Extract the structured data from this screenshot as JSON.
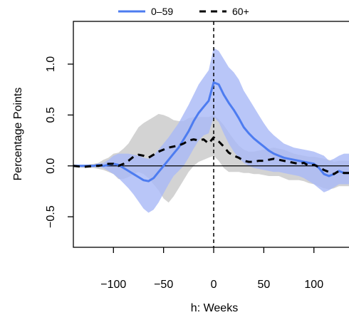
{
  "chart_data": {
    "type": "line",
    "xlabel": "h: Weeks",
    "ylabel": "Percentage Points",
    "xlim": [
      -140,
      135
    ],
    "ylim": [
      -0.8,
      1.42
    ],
    "x_ticks": [
      -100,
      -50,
      0,
      50,
      100
    ],
    "x_tick_labels": [
      "−100",
      "−50",
      "0",
      "50",
      "100"
    ],
    "y_ticks": [
      -0.5,
      0.0,
      0.5,
      1.0
    ],
    "y_tick_labels": [
      "−0.5",
      "0.0",
      "0.5",
      "1.0"
    ],
    "reference_lines": {
      "horizontal_y": 0,
      "vertical_x": 0,
      "vertical_style": "dashed"
    },
    "legend_placement": "top",
    "series": [
      {
        "name": "0–59",
        "color": "#4D7CF0",
        "band_color": "#A9B9F7",
        "line_style": "solid",
        "x": [
          -140,
          -130,
          -120,
          -115,
          -110,
          -105,
          -100,
          -95,
          -90,
          -85,
          -80,
          -75,
          -70,
          -65,
          -60,
          -55,
          -50,
          -45,
          -40,
          -35,
          -30,
          -25,
          -20,
          -15,
          -10,
          -5,
          0,
          5,
          10,
          15,
          20,
          25,
          30,
          35,
          40,
          45,
          50,
          55,
          60,
          65,
          70,
          75,
          80,
          85,
          90,
          95,
          100,
          105,
          110,
          115,
          120,
          125,
          130,
          135
        ],
        "values": [
          0.0,
          0.0,
          0.0,
          0.01,
          0.0,
          0.01,
          0.02,
          0.01,
          -0.02,
          -0.05,
          -0.08,
          -0.11,
          -0.14,
          -0.15,
          -0.12,
          -0.06,
          0.0,
          0.06,
          0.12,
          0.18,
          0.26,
          0.34,
          0.44,
          0.52,
          0.58,
          0.64,
          0.82,
          0.8,
          0.7,
          0.62,
          0.55,
          0.47,
          0.38,
          0.32,
          0.27,
          0.23,
          0.19,
          0.15,
          0.12,
          0.1,
          0.08,
          0.07,
          0.06,
          0.05,
          0.04,
          0.03,
          0.02,
          -0.02,
          -0.08,
          -0.1,
          -0.08,
          -0.05,
          -0.07,
          -0.07
        ],
        "lower": [
          -0.01,
          -0.01,
          -0.01,
          -0.01,
          -0.02,
          -0.05,
          -0.08,
          -0.12,
          -0.17,
          -0.22,
          -0.28,
          -0.35,
          -0.42,
          -0.46,
          -0.43,
          -0.36,
          -0.27,
          -0.18,
          -0.1,
          -0.05,
          0.0,
          0.08,
          0.17,
          0.25,
          0.3,
          0.32,
          0.48,
          0.43,
          0.32,
          0.22,
          0.14,
          0.08,
          0.03,
          0.0,
          -0.02,
          -0.03,
          -0.04,
          -0.05,
          -0.06,
          -0.06,
          -0.07,
          -0.08,
          -0.09,
          -0.1,
          -0.12,
          -0.15,
          -0.18,
          -0.22,
          -0.26,
          -0.24,
          -0.21,
          -0.18,
          -0.18,
          -0.18
        ],
        "upper": [
          0.01,
          0.01,
          0.01,
          0.02,
          0.03,
          0.06,
          0.1,
          0.12,
          0.12,
          0.12,
          0.11,
          0.1,
          0.08,
          0.07,
          0.1,
          0.16,
          0.22,
          0.28,
          0.35,
          0.42,
          0.51,
          0.6,
          0.7,
          0.8,
          0.87,
          0.94,
          1.16,
          1.13,
          1.05,
          0.97,
          0.92,
          0.85,
          0.74,
          0.66,
          0.58,
          0.5,
          0.42,
          0.35,
          0.3,
          0.26,
          0.22,
          0.2,
          0.18,
          0.17,
          0.16,
          0.15,
          0.14,
          0.12,
          0.1,
          0.05,
          0.07,
          0.1,
          0.12,
          0.12
        ]
      },
      {
        "name": "60+",
        "color": "#000000",
        "band_color": "#D3D3D3",
        "line_style": "dashed",
        "x": [
          -140,
          -130,
          -120,
          -115,
          -110,
          -105,
          -100,
          -95,
          -90,
          -85,
          -80,
          -75,
          -70,
          -65,
          -60,
          -55,
          -50,
          -45,
          -40,
          -35,
          -30,
          -25,
          -20,
          -15,
          -10,
          -5,
          0,
          5,
          10,
          15,
          20,
          25,
          30,
          35,
          40,
          45,
          50,
          55,
          60,
          65,
          70,
          75,
          80,
          85,
          90,
          95,
          100,
          105,
          110,
          115,
          120,
          125,
          130,
          135
        ],
        "values": [
          0.0,
          -0.01,
          0.0,
          0.0,
          0.01,
          0.02,
          0.02,
          0.0,
          0.02,
          0.05,
          0.09,
          0.11,
          0.1,
          0.08,
          0.11,
          0.14,
          0.16,
          0.18,
          0.19,
          0.2,
          0.22,
          0.25,
          0.26,
          0.25,
          0.26,
          0.22,
          0.28,
          0.24,
          0.19,
          0.13,
          0.1,
          0.08,
          0.05,
          0.04,
          0.04,
          0.05,
          0.05,
          0.06,
          0.07,
          0.06,
          0.05,
          0.04,
          0.03,
          0.02,
          0.03,
          0.0,
          0.01,
          -0.01,
          -0.04,
          -0.06,
          -0.08,
          -0.05,
          -0.07,
          -0.07
        ],
        "lower": [
          -0.01,
          -0.02,
          -0.02,
          -0.03,
          -0.04,
          -0.06,
          -0.08,
          -0.13,
          -0.13,
          -0.11,
          -0.08,
          -0.06,
          -0.08,
          -0.12,
          -0.18,
          -0.24,
          -0.32,
          -0.36,
          -0.3,
          -0.22,
          -0.14,
          -0.06,
          0.0,
          0.04,
          0.06,
          0.08,
          0.1,
          0.05,
          -0.02,
          -0.06,
          -0.06,
          -0.06,
          -0.07,
          -0.07,
          -0.08,
          -0.08,
          -0.09,
          -0.1,
          -0.1,
          -0.1,
          -0.12,
          -0.14,
          -0.14,
          -0.14,
          -0.15,
          -0.17,
          -0.18,
          -0.2,
          -0.22,
          -0.23,
          -0.22,
          -0.2,
          -0.2,
          -0.2
        ],
        "upper": [
          0.01,
          0.01,
          0.02,
          0.03,
          0.06,
          0.08,
          0.12,
          0.13,
          0.17,
          0.22,
          0.3,
          0.38,
          0.42,
          0.45,
          0.48,
          0.51,
          0.5,
          0.48,
          0.45,
          0.44,
          0.44,
          0.47,
          0.48,
          0.48,
          0.48,
          0.48,
          0.5,
          0.46,
          0.4,
          0.33,
          0.26,
          0.2,
          0.16,
          0.14,
          0.14,
          0.15,
          0.16,
          0.17,
          0.18,
          0.17,
          0.16,
          0.14,
          0.12,
          0.11,
          0.1,
          0.09,
          0.09,
          0.08,
          0.07,
          0.06,
          0.04,
          0.05,
          0.05,
          0.05
        ]
      }
    ]
  }
}
